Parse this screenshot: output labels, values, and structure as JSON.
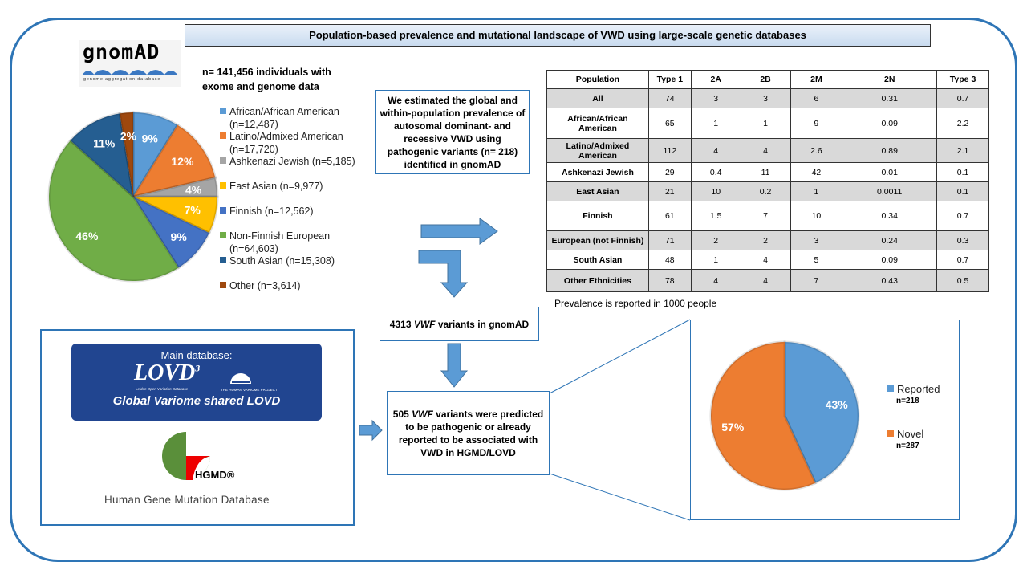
{
  "title": "Population-based prevalence and mutational landscape of VWD using large-scale genetic databases",
  "gnomad": {
    "logo_text": "gnomAD",
    "logo_subtitle": "genome aggregation database",
    "cohort_text": "n= 141,456 individuals with exome and genome data"
  },
  "chart_data": [
    {
      "type": "pie",
      "slices": [
        {
          "label": "African/African American (n=12,487)",
          "n": 12487,
          "percent_label": "9%",
          "color": "#5b9bd5"
        },
        {
          "label": "Latino/Admixed American (n=17,720)",
          "n": 17720,
          "percent_label": "12%",
          "color": "#ed7d31"
        },
        {
          "label": "Ashkenazi Jewish (n=5,185)",
          "n": 5185,
          "percent_label": "4%",
          "color": "#a5a5a5"
        },
        {
          "label": "East Asian (n=9,977)",
          "n": 9977,
          "percent_label": "7%",
          "color": "#ffc000"
        },
        {
          "label": "Finnish (n=12,562)",
          "n": 12562,
          "percent_label": "9%",
          "color": "#4472c4"
        },
        {
          "label": " Non-Finnish European (n=64,603)",
          "n": 64603,
          "percent_label": "46%",
          "color": "#70ad47"
        },
        {
          "label": "South Asian (n=15,308)",
          "n": 15308,
          "percent_label": "11%",
          "color": "#255e91"
        },
        {
          "label": "Other (n=3,614)",
          "n": 3614,
          "percent_label": "2%",
          "color": "#9e480e"
        }
      ],
      "legend": "right"
    },
    {
      "type": "pie",
      "slices": [
        {
          "label": "Reported",
          "sublabel": "n=218",
          "n": 218,
          "percent_label": "43%",
          "color": "#5b9bd5"
        },
        {
          "label": "Novel",
          "sublabel": "n=287",
          "n": 287,
          "percent_label": "57%",
          "color": "#ed7d31"
        }
      ],
      "legend": "right"
    }
  ],
  "boxes": {
    "estimate": "We estimated the global and within-population prevalence of autosomal dominant- and recessive VWD using pathogenic variants (n= 218) identified in gnomAD",
    "variants_pre": "4313 ",
    "variants_gene": "VWF",
    "variants_post": " variants in gnomAD",
    "pathogenic_pre": "505 ",
    "pathogenic_gene": "VWF",
    "pathogenic_post": " variants were predicted to be pathogenic or already reported to be associated with VWD in HGMD/LOVD"
  },
  "table": {
    "headers": [
      "Population",
      "Type 1",
      "2A",
      "2B",
      "2M",
      "2N",
      "Type 3"
    ],
    "rows": [
      [
        "All",
        "74",
        "3",
        "3",
        "6",
        "0.31",
        "0.7"
      ],
      [
        "African/African American",
        "65",
        "1",
        "1",
        "9",
        "0.09",
        "2.2"
      ],
      [
        "Latino/Admixed American",
        "112",
        "4",
        "4",
        "2.6",
        "0.89",
        "2.1"
      ],
      [
        "Ashkenazi Jewish",
        "29",
        "0.4",
        "11",
        "42",
        "0.01",
        "0.1"
      ],
      [
        "East Asian",
        "21",
        "10",
        "0.2",
        "1",
        "0.0011",
        "0.1"
      ],
      [
        "Finnish",
        "61",
        "1.5",
        "7",
        "10",
        "0.34",
        "0.7"
      ],
      [
        "European (not Finnish)",
        "71",
        "2",
        "2",
        "3",
        "0.24",
        "0.3"
      ],
      [
        "South Asian",
        "48",
        "1",
        "4",
        "5",
        "0.09",
        "0.7"
      ],
      [
        "Other Ethnicities",
        "78",
        "4",
        "4",
        "7",
        "0.43",
        "0.5"
      ]
    ],
    "note": "Prevalence is reported in 1000 people"
  },
  "databases": {
    "lovd_main": "Main database:",
    "lovd_logo": "LOVD",
    "lovd_logo_sup": "3",
    "lovd_logo_sub": "Leiden Open Variation Database",
    "hvp_logo": "THE HUMAN VARIOME PROJECT",
    "lovd_name": "Global Variome shared LOVD",
    "hgmd_logo": "HGMD®",
    "hgmd_name": "Human Gene Mutation Database"
  }
}
